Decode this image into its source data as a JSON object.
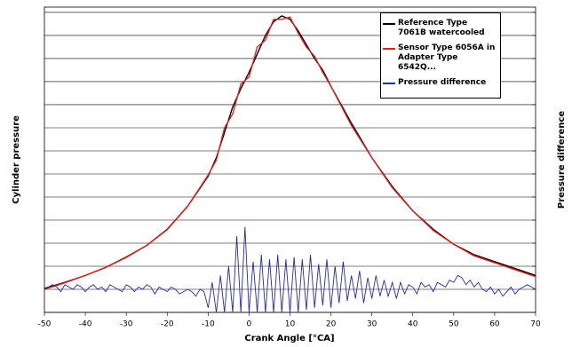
{
  "chart_data": {
    "type": "line",
    "xlabel": "Crank Angle [°CA]",
    "ylabel": "Cylinder pressure",
    "y2label": "Pressure difference",
    "xlim": [
      -50,
      70
    ],
    "xticks": [
      -50,
      -40,
      -30,
      -20,
      -10,
      0,
      10,
      20,
      30,
      40,
      50,
      60,
      70
    ],
    "ylim": [
      0,
      13.23
    ],
    "yticks": [
      0,
      1,
      2,
      3,
      4,
      5,
      6,
      7,
      8,
      9,
      10,
      11,
      12,
      13
    ],
    "y2lim": [
      -1,
      12.23
    ],
    "y2ticks": [
      -1,
      0,
      1,
      2,
      3,
      4,
      5,
      6,
      7,
      8,
      9,
      10,
      11,
      12
    ],
    "grid": true,
    "legend": "upper right",
    "series": [
      {
        "name": "Reference Type 7061B watercooled",
        "color": "#000000",
        "x": [
          -50,
          -45,
          -40,
          -35,
          -30,
          -25,
          -20,
          -15,
          -10,
          -8,
          -6,
          -4,
          -2,
          0,
          2,
          4,
          6,
          8,
          10,
          12,
          14,
          16,
          18,
          20,
          25,
          30,
          35,
          40,
          45,
          50,
          55,
          60,
          65,
          70
        ],
        "values": [
          1.04,
          1.3,
          1.6,
          1.95,
          2.4,
          2.9,
          3.6,
          4.6,
          5.9,
          6.7,
          7.8,
          8.9,
          9.7,
          10.4,
          11.2,
          12.0,
          12.6,
          12.85,
          12.7,
          12.2,
          11.6,
          11.0,
          10.5,
          9.8,
          8.2,
          6.7,
          5.45,
          4.4,
          3.6,
          2.95,
          2.5,
          2.2,
          1.9,
          1.6
        ]
      },
      {
        "name": "Sensor Type 6056A in Adapter Type 6542Q...",
        "color": "#e02020",
        "x": [
          -50,
          -45,
          -40,
          -35,
          -30,
          -25,
          -20,
          -15,
          -10,
          -8,
          -6,
          -4,
          -2,
          0,
          2,
          4,
          6,
          8,
          10,
          12,
          14,
          16,
          18,
          20,
          25,
          30,
          35,
          40,
          45,
          50,
          55,
          60,
          65,
          70
        ],
        "values": [
          1.0,
          1.28,
          1.6,
          1.95,
          2.38,
          2.9,
          3.58,
          4.6,
          5.95,
          6.6,
          8.0,
          8.6,
          9.9,
          10.2,
          11.5,
          11.8,
          12.7,
          12.7,
          12.8,
          12.1,
          11.5,
          11.1,
          10.4,
          9.8,
          8.1,
          6.7,
          5.4,
          4.4,
          3.55,
          2.95,
          2.45,
          2.15,
          1.85,
          1.55
        ]
      },
      {
        "name": "Pressure difference",
        "color": "#2a2aa0",
        "axis": "y2",
        "x": [
          -50,
          -49,
          -48,
          -47,
          -46,
          -45,
          -44,
          -43,
          -42,
          -41,
          -40,
          -39,
          -38,
          -37,
          -36,
          -35,
          -34,
          -33,
          -32,
          -31,
          -30,
          -29,
          -28,
          -27,
          -26,
          -25,
          -24,
          -23,
          -22,
          -21,
          -20,
          -19,
          -18,
          -17,
          -16,
          -15,
          -14,
          -13,
          -12,
          -11,
          -10,
          -9,
          -8,
          -7,
          -6,
          -5,
          -4,
          -3,
          -2,
          -1,
          0,
          1,
          2,
          3,
          4,
          5,
          6,
          7,
          8,
          9,
          10,
          11,
          12,
          13,
          14,
          15,
          16,
          17,
          18,
          19,
          20,
          21,
          22,
          23,
          24,
          25,
          26,
          27,
          28,
          29,
          30,
          31,
          32,
          33,
          34,
          35,
          36,
          37,
          38,
          39,
          40,
          41,
          42,
          43,
          44,
          45,
          46,
          47,
          48,
          49,
          50,
          51,
          52,
          53,
          54,
          55,
          56,
          57,
          58,
          59,
          60,
          61,
          62,
          63,
          64,
          65,
          66,
          67,
          68,
          69,
          70
        ],
        "values": [
          0.0,
          0.1,
          0.2,
          0.1,
          -0.1,
          0.2,
          0.1,
          0.0,
          0.2,
          0.1,
          -0.1,
          0.1,
          0.2,
          0.0,
          0.1,
          -0.1,
          0.2,
          0.1,
          0.0,
          -0.1,
          0.2,
          0.1,
          -0.1,
          0.1,
          0.0,
          0.2,
          0.1,
          -0.2,
          0.1,
          0.0,
          -0.1,
          0.1,
          0.0,
          -0.2,
          -0.1,
          0.0,
          -0.1,
          -0.3,
          0.0,
          -0.1,
          -0.8,
          0.3,
          -1.0,
          0.6,
          -1.0,
          1.0,
          -1.0,
          2.3,
          -1.0,
          2.7,
          -1.0,
          1.2,
          -1.0,
          1.5,
          -1.0,
          1.3,
          -1.0,
          1.5,
          -1.0,
          1.3,
          -1.0,
          1.4,
          -1.0,
          1.3,
          -0.9,
          1.5,
          -0.8,
          1.1,
          -0.7,
          1.3,
          -0.8,
          1.0,
          -0.6,
          1.2,
          -0.5,
          0.6,
          -0.4,
          0.8,
          -0.6,
          0.5,
          -0.4,
          0.6,
          -0.3,
          0.4,
          -0.3,
          0.3,
          -0.4,
          0.3,
          -0.2,
          0.2,
          0.1,
          -0.2,
          0.3,
          0.1,
          0.2,
          -0.1,
          0.3,
          0.2,
          0.1,
          0.4,
          0.3,
          0.6,
          0.5,
          0.2,
          0.4,
          0.1,
          0.3,
          0.0,
          -0.1,
          0.1,
          -0.2,
          0.0,
          -0.3,
          -0.1,
          0.1,
          -0.2,
          0.0,
          0.1,
          0.2,
          0.1,
          0.0
        ]
      }
    ]
  }
}
